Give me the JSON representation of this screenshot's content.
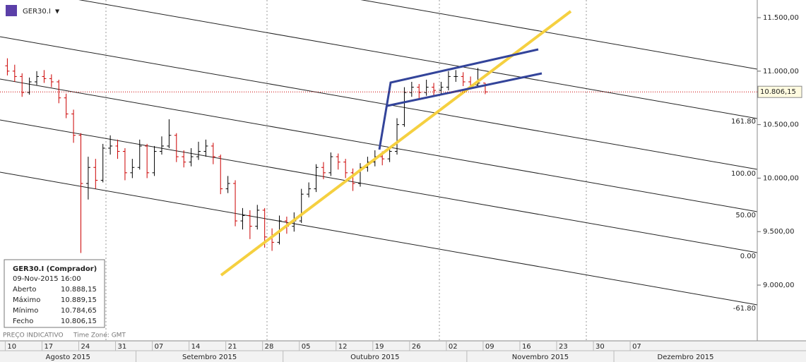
{
  "header": {
    "symbol": "GER30.I",
    "dropdown": "▼"
  },
  "footer": {
    "note": "PREÇO INDICATIVO",
    "timezone": "Time Zone: GMT"
  },
  "info_box": {
    "title": "GER30.I (Comprador)",
    "datetime": "09-Nov-2015 16:00",
    "rows": [
      [
        "Aberto",
        "10.888,15"
      ],
      [
        "Máximo",
        "10.889,15"
      ],
      [
        "Mínimo",
        "10.784,65"
      ],
      [
        "Fecho",
        "10.806,15"
      ]
    ]
  },
  "fib_levels": [
    {
      "value": 161.8,
      "label": "161.80"
    },
    {
      "value": 100,
      "label": "100.00"
    },
    {
      "value": 50,
      "label": "50.00"
    },
    {
      "value": 0,
      "label": "0.00"
    },
    {
      "value": -61.8,
      "label": "-61.80"
    }
  ],
  "chart_data": {
    "type": "ohlc",
    "categories": [
      "2015-08-10",
      "2015-08-11",
      "2015-08-12",
      "2015-08-13",
      "2015-08-14",
      "2015-08-17",
      "2015-08-18",
      "2015-08-19",
      "2015-08-20",
      "2015-08-21",
      "2015-08-24",
      "2015-08-25",
      "2015-08-26",
      "2015-08-27",
      "2015-08-28",
      "2015-08-31",
      "2015-09-01",
      "2015-09-02",
      "2015-09-03",
      "2015-09-04",
      "2015-09-07",
      "2015-09-08",
      "2015-09-09",
      "2015-09-10",
      "2015-09-11",
      "2015-09-14",
      "2015-09-15",
      "2015-09-16",
      "2015-09-17",
      "2015-09-18",
      "2015-09-21",
      "2015-09-22",
      "2015-09-23",
      "2015-09-24",
      "2015-09-25",
      "2015-09-28",
      "2015-09-29",
      "2015-09-30",
      "2015-10-01",
      "2015-10-02",
      "2015-10-05",
      "2015-10-06",
      "2015-10-07",
      "2015-10-08",
      "2015-10-09",
      "2015-10-12",
      "2015-10-13",
      "2015-10-14",
      "2015-10-15",
      "2015-10-16",
      "2015-10-19",
      "2015-10-20",
      "2015-10-21",
      "2015-10-22",
      "2015-10-23",
      "2015-10-26",
      "2015-10-27",
      "2015-10-28",
      "2015-10-29",
      "2015-10-30",
      "2015-11-02",
      "2015-11-03",
      "2015-11-04",
      "2015-11-05",
      "2015-11-06",
      "2015-11-09"
    ],
    "open": [
      11050,
      11000,
      10950,
      10800,
      10900,
      10950,
      10930,
      10900,
      10750,
      10600,
      10400,
      9950,
      10100,
      9980,
      10280,
      10300,
      10250,
      10050,
      10100,
      10300,
      10050,
      10250,
      10300,
      10400,
      10200,
      10150,
      10200,
      10250,
      10300,
      10200,
      9900,
      9950,
      9600,
      9650,
      9550,
      9700,
      9450,
      9400,
      9600,
      9550,
      9600,
      9850,
      9900,
      10100,
      10050,
      10200,
      10150,
      10050,
      9950,
      10100,
      10150,
      10200,
      10180,
      10250,
      10500,
      10800,
      10850,
      10800,
      10850,
      10820,
      10850,
      10950,
      10950,
      10900,
      10870,
      10888.15
    ],
    "high": [
      11120,
      11060,
      10980,
      10940,
      11000,
      11010,
      10970,
      10920,
      10790,
      10640,
      10420,
      10200,
      10180,
      10320,
      10400,
      10360,
      10280,
      10180,
      10360,
      10320,
      10300,
      10390,
      10550,
      10420,
      10260,
      10280,
      10340,
      10360,
      10330,
      10220,
      10020,
      9980,
      9720,
      9700,
      9750,
      9720,
      9530,
      9650,
      9640,
      9680,
      9900,
      9960,
      10130,
      10150,
      10240,
      10230,
      10180,
      10090,
      10140,
      10200,
      10260,
      10250,
      10290,
      10560,
      10850,
      10900,
      10880,
      10920,
      10890,
      10900,
      11000,
      11010,
      10990,
      10950,
      11030,
      10889.15
    ],
    "low": [
      10960,
      10900,
      10760,
      10780,
      10870,
      10890,
      10850,
      10700,
      10560,
      10330,
      9300,
      9800,
      9900,
      9960,
      10220,
      10180,
      9980,
      10000,
      10080,
      10000,
      10020,
      10220,
      10280,
      10150,
      10100,
      10110,
      10170,
      10200,
      10130,
      9850,
      9860,
      9550,
      9520,
      9430,
      9520,
      9350,
      9320,
      9380,
      9480,
      9500,
      9580,
      9820,
      9870,
      9990,
      10020,
      10080,
      10000,
      9880,
      9920,
      10060,
      10110,
      10120,
      10150,
      10220,
      10480,
      10760,
      10740,
      10770,
      10760,
      10790,
      10820,
      10900,
      10860,
      10830,
      10850,
      10784.65
    ],
    "close": [
      11000,
      10950,
      10800,
      10900,
      10950,
      10930,
      10900,
      10750,
      10600,
      10400,
      9950,
      10100,
      9980,
      10280,
      10300,
      10250,
      10050,
      10100,
      10300,
      10050,
      10250,
      10300,
      10400,
      10200,
      10150,
      10200,
      10250,
      10300,
      10200,
      9900,
      9950,
      9600,
      9650,
      9550,
      9700,
      9450,
      9400,
      9600,
      9550,
      9600,
      9850,
      9900,
      10100,
      10050,
      10200,
      10150,
      10050,
      9950,
      10100,
      10150,
      10200,
      10180,
      10250,
      10500,
      10800,
      10850,
      10800,
      10850,
      10820,
      10850,
      10950,
      10950,
      10900,
      10870,
      10888.15,
      10806.15
    ],
    "up_color": "#000000",
    "down_color": "#cc0000",
    "xlim": [
      -1,
      102
    ],
    "xticks": [
      {
        "value": 0,
        "label": "10"
      },
      {
        "value": 5,
        "label": "17"
      },
      {
        "value": 10,
        "label": "24"
      },
      {
        "value": 15,
        "label": "31"
      },
      {
        "value": 20,
        "label": "07"
      },
      {
        "value": 25,
        "label": "14"
      },
      {
        "value": 30,
        "label": "21"
      },
      {
        "value": 35,
        "label": "28"
      },
      {
        "value": 40,
        "label": "05"
      },
      {
        "value": 45,
        "label": "12"
      },
      {
        "value": 50,
        "label": "19"
      },
      {
        "value": 55,
        "label": "26"
      },
      {
        "value": 60,
        "label": "02"
      },
      {
        "value": 65,
        "label": "09"
      },
      {
        "value": 70,
        "label": "16"
      },
      {
        "value": 75,
        "label": "23"
      },
      {
        "value": 80,
        "label": "30"
      },
      {
        "value": 85,
        "label": "07"
      }
    ],
    "months": [
      "Agosto 2015",
      "Setembro 2015",
      "Outubro 2015",
      "Novembro 2015",
      "Dezembro 2015"
    ],
    "ylim": [
      8479,
      11665
    ],
    "yticks": [
      {
        "value": 11500,
        "label": "11.500,00"
      },
      {
        "value": 11000,
        "label": "11.000,00"
      },
      {
        "value": 10500,
        "label": "10.500,00"
      },
      {
        "value": 10000,
        "label": "10.000,00"
      },
      {
        "value": 9500,
        "label": "9.500,00"
      },
      {
        "value": 9000,
        "label": "9.000,00"
      }
    ],
    "last_price": {
      "value": 10806.15,
      "label": "10.806,15"
    }
  }
}
